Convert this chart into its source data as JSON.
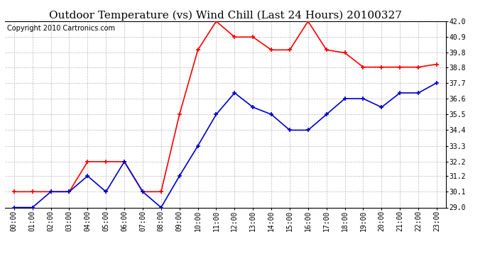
{
  "title": "Outdoor Temperature (vs) Wind Chill (Last 24 Hours) 20100327",
  "copyright": "Copyright 2010 Cartronics.com",
  "x_labels": [
    "00:00",
    "01:00",
    "02:00",
    "03:00",
    "04:00",
    "05:00",
    "06:00",
    "07:00",
    "08:00",
    "09:00",
    "10:00",
    "11:00",
    "12:00",
    "13:00",
    "14:00",
    "15:00",
    "16:00",
    "17:00",
    "18:00",
    "19:00",
    "20:00",
    "21:00",
    "22:00",
    "23:00"
  ],
  "outdoor_temp": [
    30.1,
    30.1,
    30.1,
    30.1,
    32.2,
    32.2,
    32.2,
    30.1,
    30.1,
    35.5,
    40.0,
    42.0,
    40.9,
    40.9,
    40.0,
    40.0,
    42.0,
    40.0,
    39.8,
    38.8,
    38.8,
    38.8,
    38.8,
    39.0
  ],
  "wind_chill": [
    29.0,
    29.0,
    30.1,
    30.1,
    31.2,
    30.1,
    32.2,
    30.1,
    29.0,
    31.2,
    33.3,
    35.5,
    37.0,
    36.0,
    35.5,
    34.4,
    34.4,
    35.5,
    36.6,
    36.6,
    36.0,
    37.0,
    37.0,
    37.7
  ],
  "ylim_min": 29.0,
  "ylim_max": 42.0,
  "yticks": [
    29.0,
    30.1,
    31.2,
    32.2,
    33.3,
    34.4,
    35.5,
    36.6,
    37.7,
    38.8,
    39.8,
    40.9,
    42.0
  ],
  "temp_color": "#ff0000",
  "chill_color": "#0000cc",
  "bg_color": "#ffffff",
  "grid_color": "#aaaaaa",
  "title_color": "#000000",
  "copyright_color": "#000000",
  "title_fontsize": 11,
  "copyright_fontsize": 7,
  "tick_fontsize": 7
}
